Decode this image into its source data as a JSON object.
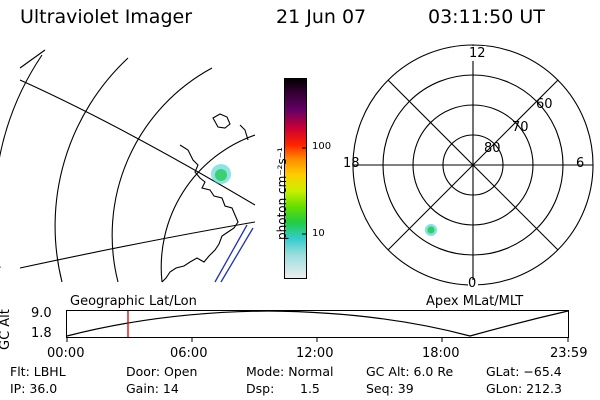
{
  "header": {
    "instrument": "Ultraviolet Imager",
    "date": "21 Jun 07",
    "time": "03:11:50 UT"
  },
  "colorbar": {
    "unit_label": "photon cm⁻²s⁻¹",
    "tick_100": "100",
    "tick_10": "10"
  },
  "polar": {
    "mlt_labels": {
      "top": "12",
      "left": "18",
      "right": "6",
      "bottom": "0"
    },
    "lat_labels": {
      "l60": "60",
      "l70": "70",
      "l80": "80"
    }
  },
  "orbit": {
    "left_caption": "Geographic Lat/Lon",
    "right_caption": "Apex MLat/MLT",
    "axis_title": "GC Alt",
    "y_ticks": [
      "9.0",
      "1.8"
    ],
    "time_ticks": [
      "00:00",
      "06:00",
      "12:00",
      "18:00",
      "23:59"
    ]
  },
  "info": {
    "flt": "Flt: LBHL",
    "ip": "IP: 36.0",
    "door": "Door: Open",
    "gain": "Gain: 14",
    "mode": "Mode: Normal",
    "dsp_label": "Dsp:",
    "dsp_value": "1.5",
    "gc_alt": "GC Alt: 6.0 Re",
    "seq": "Seq: 39",
    "glat": "GLat: −65.4",
    "glon": "GLon: 212.3"
  },
  "colors": {
    "background": "#ffffff",
    "line": "#000000",
    "time_marker": "#d00000",
    "emission_core": "#33cc33",
    "emission_outer": "#33cccc"
  }
}
